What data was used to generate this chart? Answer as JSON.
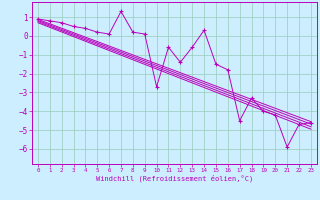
{
  "xlabel": "Windchill (Refroidissement éolien,°C)",
  "xlim": [
    -0.5,
    23.5
  ],
  "ylim": [
    -6.8,
    1.8
  ],
  "yticks": [
    1,
    0,
    -1,
    -2,
    -3,
    -4,
    -5,
    -6
  ],
  "xticks": [
    0,
    1,
    2,
    3,
    4,
    5,
    6,
    7,
    8,
    9,
    10,
    11,
    12,
    13,
    14,
    15,
    16,
    17,
    18,
    19,
    20,
    21,
    22,
    23
  ],
  "bg_color": "#cceeff",
  "grid_color": "#99ccbb",
  "line_color": "#bb00bb",
  "data_x": [
    0,
    1,
    2,
    3,
    4,
    5,
    6,
    7,
    8,
    9,
    10,
    11,
    12,
    13,
    14,
    15,
    16,
    17,
    18,
    19,
    20,
    21,
    22,
    23
  ],
  "data_y": [
    0.9,
    0.8,
    0.7,
    0.5,
    0.4,
    0.2,
    0.1,
    1.3,
    0.2,
    0.1,
    -2.7,
    -0.6,
    -1.4,
    -0.6,
    0.3,
    -1.5,
    -1.8,
    -4.5,
    -3.3,
    -4.0,
    -4.2,
    -5.9,
    -4.7,
    -4.6
  ],
  "reg_lines": [
    [
      0.88,
      -4.55
    ],
    [
      0.82,
      -4.68
    ],
    [
      0.76,
      -4.82
    ],
    [
      0.7,
      -4.95
    ]
  ]
}
